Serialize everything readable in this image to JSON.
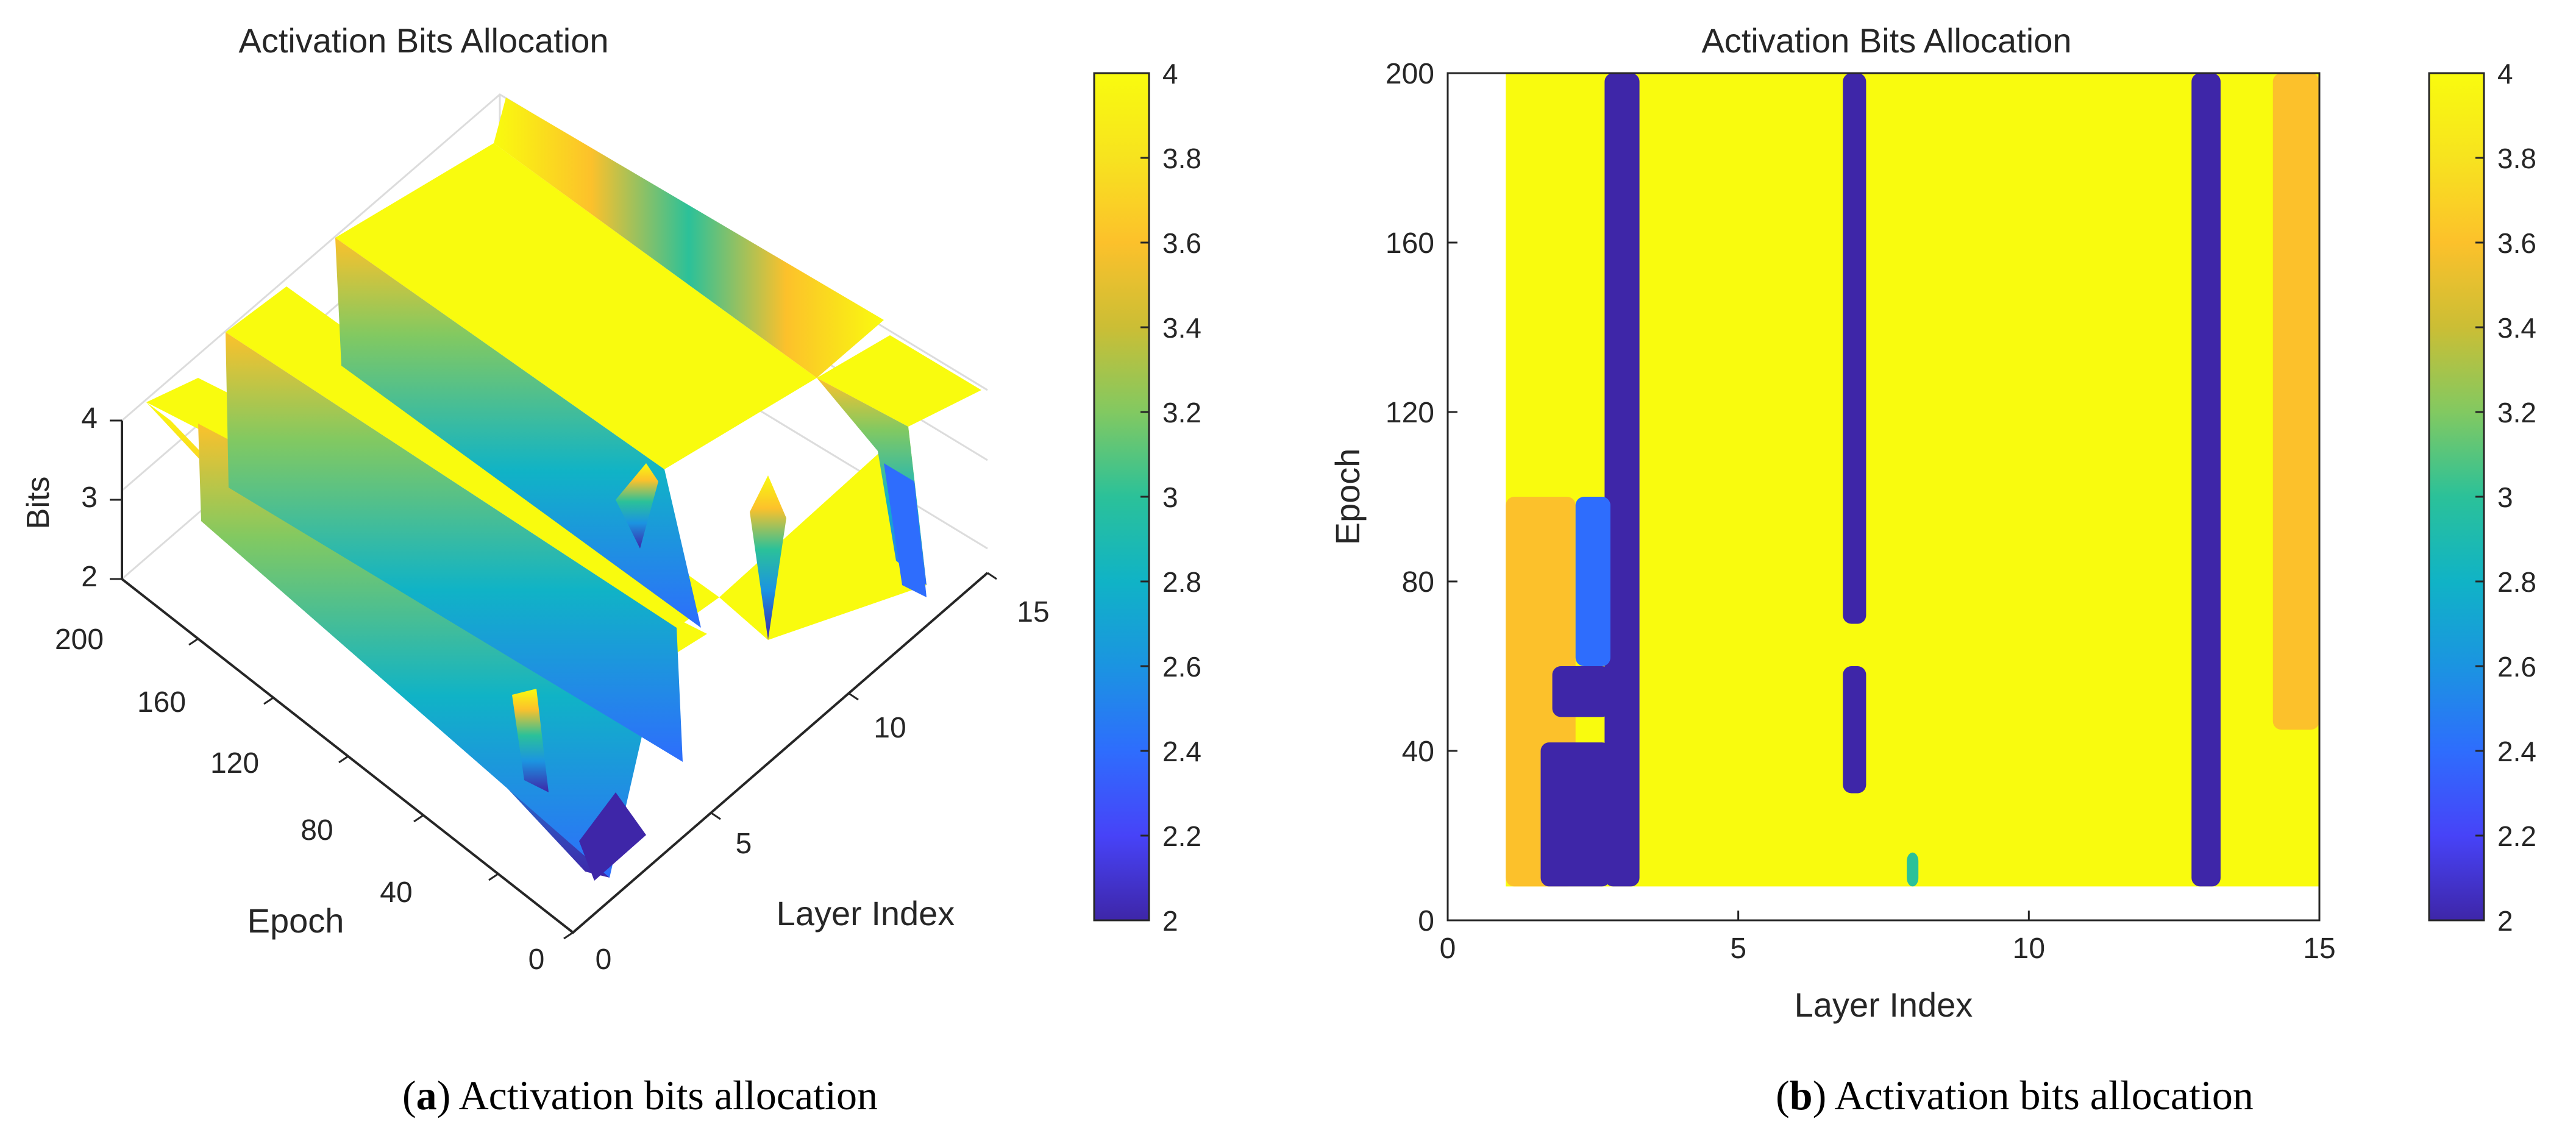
{
  "chart_data": [
    {
      "panel": "a",
      "type": "surface",
      "title": "Activation Bits Allocation",
      "caption_letter": "a",
      "caption_text": ") Activation bits allocation",
      "caption_open": "(",
      "xlabel": "Layer Index",
      "ylabel": "Epoch",
      "zlabel": "Bits",
      "x_ticks": [
        "0",
        "5",
        "10",
        "15"
      ],
      "y_ticks": [
        "0",
        "40",
        "80",
        "120",
        "160",
        "200"
      ],
      "z_ticks": [
        "2",
        "3",
        "4"
      ],
      "xlim": [
        0,
        15
      ],
      "ylim": [
        0,
        200
      ],
      "zlim": [
        2,
        4
      ],
      "colorbar": {
        "min": 2,
        "max": 4,
        "ticks": [
          "2",
          "2.2",
          "2.4",
          "2.6",
          "2.8",
          "3",
          "3.2",
          "3.4",
          "3.6",
          "3.8",
          "4"
        ]
      },
      "grid": true
    },
    {
      "panel": "b",
      "type": "heatmap",
      "title": "Activation Bits Allocation",
      "caption_letter": "b",
      "caption_text": ") Activation bits allocation",
      "caption_open": "(",
      "xlabel": "Layer Index",
      "ylabel": "Epoch",
      "x_ticks": [
        "0",
        "5",
        "10",
        "15"
      ],
      "y_ticks": [
        "0",
        "40",
        "80",
        "120",
        "160",
        "200"
      ],
      "xlim": [
        0,
        15
      ],
      "ylim": [
        0,
        200
      ],
      "data_x_range": [
        1,
        15
      ],
      "data_y_range": [
        8,
        200
      ],
      "colorbar": {
        "min": 2,
        "max": 4,
        "ticks": [
          "2",
          "2.2",
          "2.4",
          "2.6",
          "2.8",
          "3",
          "3.2",
          "3.4",
          "3.6",
          "3.8",
          "4"
        ]
      },
      "colormap": [
        "#3e26a8",
        "#4743f8",
        "#2e6dfd",
        "#1b94e1",
        "#10b3c6",
        "#2bc199",
        "#82c961",
        "#cbbe35",
        "#fcc12b",
        "#f7e31f",
        "#f9fb0e"
      ],
      "regions": [
        {
          "x": [
            1,
            15
          ],
          "y": [
            8,
            200
          ],
          "bits": 4
        },
        {
          "x": [
            2.7,
            3.3
          ],
          "y": [
            8,
            200
          ],
          "bits": 2
        },
        {
          "x": [
            12.8,
            13.3
          ],
          "y": [
            8,
            200
          ],
          "bits": 2
        },
        {
          "x": [
            14.2,
            15
          ],
          "y": [
            45,
            200
          ],
          "bits": 3.6
        },
        {
          "x": [
            1,
            2.2
          ],
          "y": [
            8,
            100
          ],
          "bits": 3.5
        },
        {
          "x": [
            1.6,
            2.8
          ],
          "y": [
            8,
            42
          ],
          "bits": 2
        },
        {
          "x": [
            1.8,
            2.8
          ],
          "y": [
            48,
            60
          ],
          "bits": 2
        },
        {
          "x": [
            2.2,
            2.8
          ],
          "y": [
            60,
            100
          ],
          "bits": 2.4
        },
        {
          "x": [
            6.8,
            7.2
          ],
          "y": [
            70,
            200
          ],
          "bits": 2
        },
        {
          "x": [
            6.8,
            7.2
          ],
          "y": [
            30,
            60
          ],
          "bits": 2
        },
        {
          "x": [
            7.9,
            8.1
          ],
          "y": [
            8,
            16
          ],
          "bits": 3
        }
      ]
    }
  ]
}
